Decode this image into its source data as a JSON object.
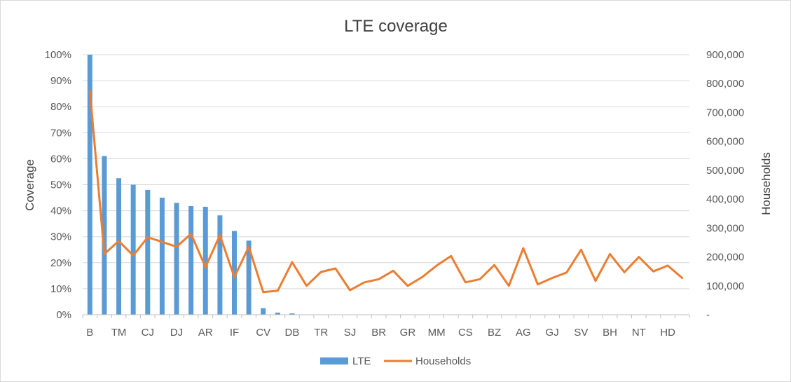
{
  "chart_data": {
    "type": "bar",
    "title": "LTE coverage",
    "xlabel": "",
    "ylabel": "Coverage",
    "y2label": "Households",
    "ylim": [
      0,
      1
    ],
    "y2lim": [
      0,
      900000
    ],
    "yticks": [
      "0%",
      "10%",
      "20%",
      "30%",
      "40%",
      "50%",
      "60%",
      "70%",
      "80%",
      "90%",
      "100%"
    ],
    "y2ticks": [
      "-",
      "100,000",
      "200,000",
      "300,000",
      "400,000",
      "500,000",
      "600,000",
      "700,000",
      "800,000",
      "900,000"
    ],
    "x_tick_labels": [
      "B",
      "TM",
      "CJ",
      "DJ",
      "AR",
      "IF",
      "CV",
      "DB",
      "TR",
      "SJ",
      "BR",
      "GR",
      "MM",
      "CS",
      "BZ",
      "AG",
      "GJ",
      "SV",
      "BH",
      "NT",
      "HD"
    ],
    "category_count": 42,
    "grid": true,
    "legend_position": "bottom",
    "colors": {
      "LTE": "#5b9bd5",
      "Households": "#ed7d31"
    },
    "series": [
      {
        "name": "LTE",
        "type": "bar",
        "axis": "left",
        "values": [
          1.0,
          0.61,
          0.525,
          0.5,
          0.48,
          0.45,
          0.43,
          0.418,
          0.415,
          0.382,
          0.322,
          0.285,
          0.025,
          0.008,
          0.005,
          0,
          0,
          0,
          0,
          0,
          0,
          0,
          0,
          0,
          0,
          0,
          0,
          0,
          0,
          0,
          0,
          0,
          0,
          0,
          0,
          0,
          0,
          0,
          0,
          0,
          0,
          0
        ]
      },
      {
        "name": "Households",
        "type": "line",
        "axis": "right",
        "values": [
          775000,
          210000,
          255000,
          205000,
          268000,
          252000,
          235000,
          280000,
          165000,
          275000,
          130000,
          235000,
          78000,
          83000,
          182000,
          100000,
          148000,
          160000,
          85000,
          112000,
          123000,
          152000,
          100000,
          130000,
          170000,
          203000,
          112000,
          123000,
          172000,
          100000,
          230000,
          105000,
          127000,
          146000,
          225000,
          117000,
          210000,
          147000,
          200000,
          150000,
          170000,
          127000
        ]
      }
    ]
  }
}
